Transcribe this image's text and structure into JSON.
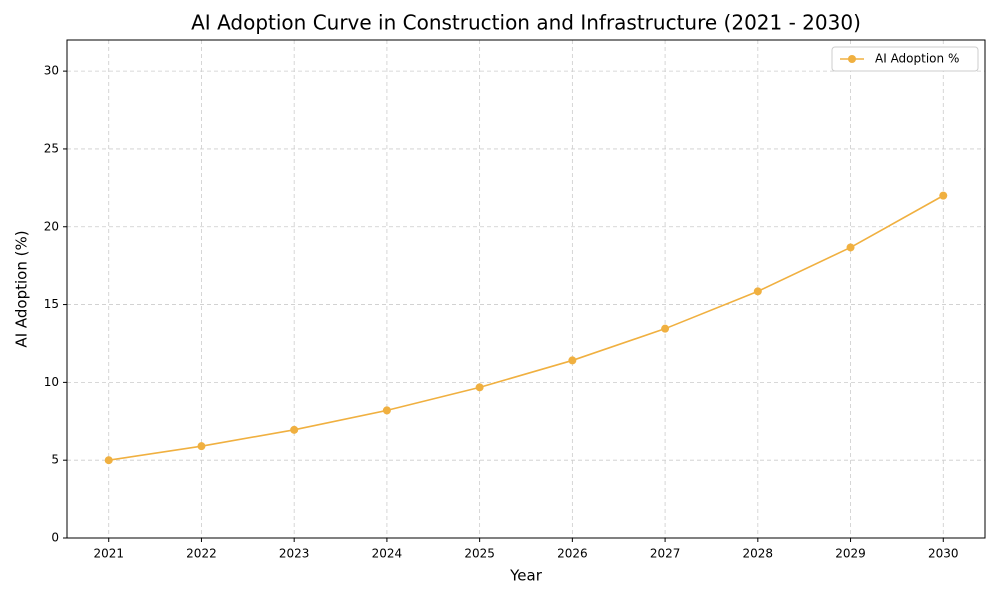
{
  "chart_data": {
    "type": "line",
    "title": "AI Adoption Curve in Construction and Infrastructure (2021 - 2030)",
    "x_label": "Year",
    "y_label": "AI Adoption (%)",
    "x": [
      2021,
      2022,
      2023,
      2024,
      2025,
      2026,
      2027,
      2028,
      2029,
      2030
    ],
    "series": [
      {
        "name": "AI Adoption %",
        "color": "#f0b040",
        "values": [
          5.0,
          5.9,
          6.95,
          8.2,
          9.68,
          11.41,
          13.45,
          15.85,
          18.67,
          22.0
        ]
      }
    ],
    "xlim": [
      2020.55,
      2030.45
    ],
    "xticks": [
      2021,
      2022,
      2023,
      2024,
      2025,
      2026,
      2027,
      2028,
      2029,
      2030
    ],
    "ylim": [
      0,
      32
    ],
    "yticks": [
      0,
      5,
      10,
      15,
      20,
      25,
      30
    ],
    "grid": true,
    "legend": "upper right"
  }
}
